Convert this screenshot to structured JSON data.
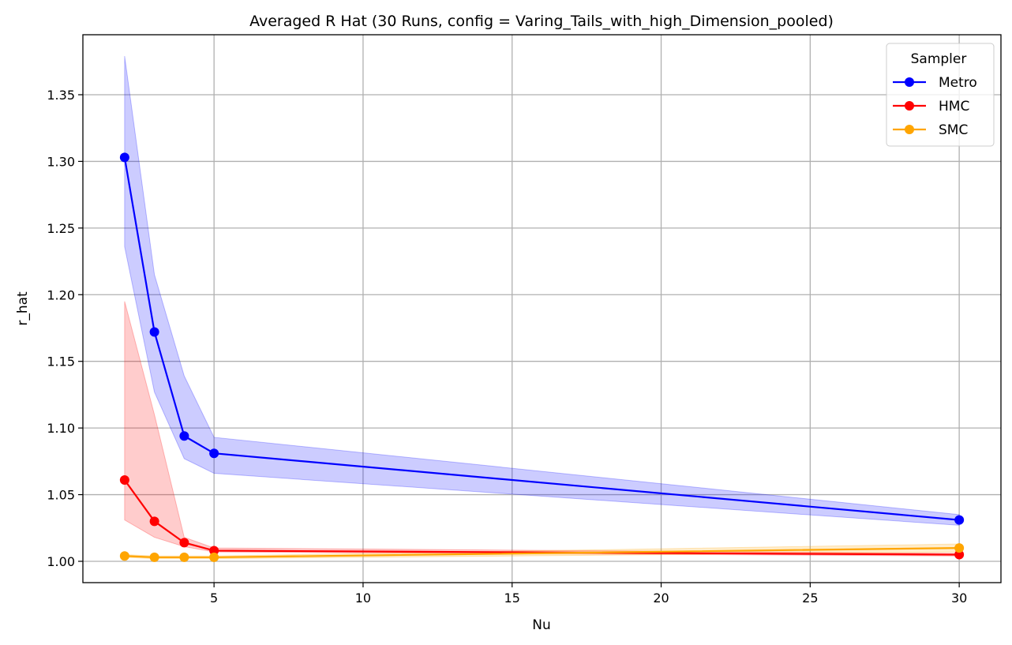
{
  "chart_data": {
    "type": "line",
    "title": "Averaged R Hat (30 Runs, config = Varing_Tails_with_high_Dimension_pooled)",
    "xlabel": "Nu",
    "ylabel": "r_hat",
    "xlim": [
      0.6,
      31.4
    ],
    "ylim": [
      0.984,
      1.395
    ],
    "x_ticks": [
      5,
      10,
      15,
      20,
      25,
      30
    ],
    "y_ticks": [
      1.0,
      1.05,
      1.1,
      1.15,
      1.2,
      1.25,
      1.3,
      1.35
    ],
    "x_tick_labels": [
      "5",
      "10",
      "15",
      "20",
      "25",
      "30"
    ],
    "y_tick_labels": [
      "1.00",
      "1.05",
      "1.10",
      "1.15",
      "1.20",
      "1.25",
      "1.30",
      "1.35"
    ],
    "grid": true,
    "legend": {
      "title": "Sampler",
      "position": "top-right"
    },
    "x": [
      2,
      3,
      4,
      5,
      30
    ],
    "series": [
      {
        "name": "Metro",
        "color": "#0000ff",
        "values": [
          1.303,
          1.172,
          1.094,
          1.081,
          1.031
        ],
        "lower": [
          1.236,
          1.127,
          1.077,
          1.066,
          1.027
        ],
        "upper": [
          1.379,
          1.215,
          1.139,
          1.093,
          1.035
        ]
      },
      {
        "name": "HMC",
        "color": "#ff0000",
        "values": [
          1.061,
          1.03,
          1.014,
          1.008,
          1.005
        ],
        "lower": [
          1.031,
          1.018,
          1.011,
          1.007,
          1.004
        ],
        "upper": [
          1.195,
          1.11,
          1.018,
          1.01,
          1.006
        ]
      },
      {
        "name": "SMC",
        "color": "#ffa500",
        "values": [
          1.004,
          1.003,
          1.003,
          1.003,
          1.01
        ],
        "lower": [
          1.003,
          1.002,
          1.002,
          1.002,
          1.007
        ],
        "upper": [
          1.005,
          1.004,
          1.004,
          1.004,
          1.013
        ]
      }
    ]
  }
}
